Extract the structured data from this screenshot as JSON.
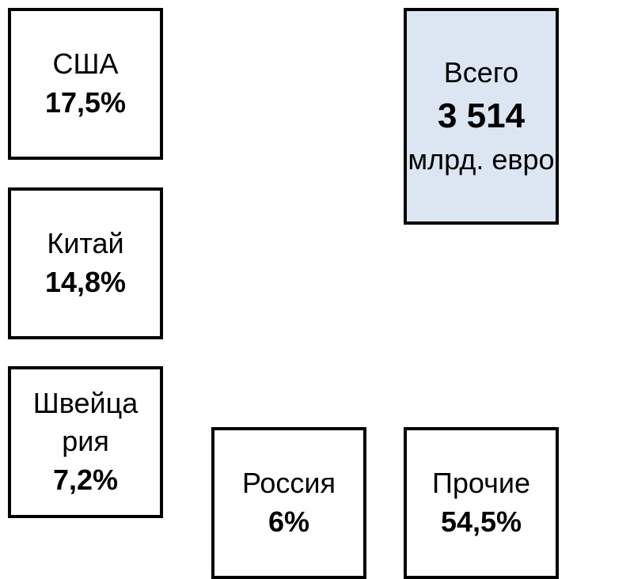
{
  "boxes": [
    {
      "label": "США",
      "value": "17,5%"
    },
    {
      "label": "Китай",
      "value": "14,8%"
    },
    {
      "label": "Швейцария",
      "value": "7,2%"
    },
    {
      "label": "Россия",
      "value": "6%"
    },
    {
      "label": "Прочие",
      "value": "54,5%"
    }
  ],
  "total": {
    "label": "Всего",
    "value": "3 514",
    "unit": "млрд. евро"
  }
}
